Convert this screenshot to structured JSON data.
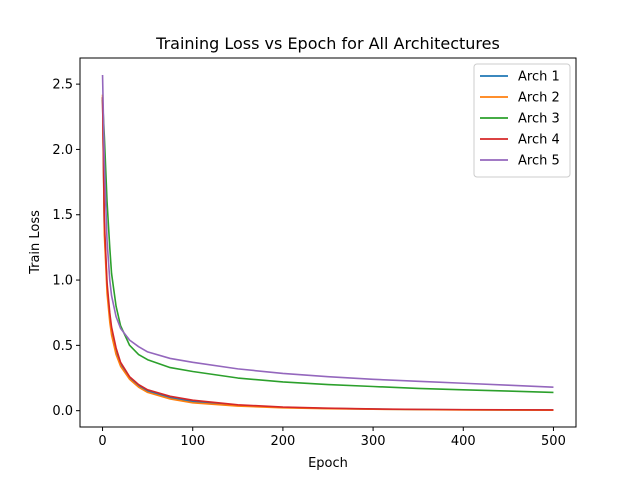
{
  "chart_data": {
    "type": "line",
    "title": "Training Loss vs Epoch for All Architectures",
    "xlabel": "Epoch",
    "ylabel": "Train Loss",
    "xlim": [
      -25,
      525
    ],
    "ylim": [
      -0.125,
      2.7
    ],
    "xticks": [
      0,
      100,
      200,
      300,
      400,
      500
    ],
    "xtick_labels": [
      "0",
      "100",
      "200",
      "300",
      "400",
      "500"
    ],
    "yticks": [
      0.0,
      0.5,
      1.0,
      1.5,
      2.0,
      2.5
    ],
    "ytick_labels": [
      "0.0",
      "0.5",
      "1.0",
      "1.5",
      "2.0",
      "2.5"
    ],
    "grid": false,
    "legend_position": "top-right",
    "x": [
      0,
      2,
      5,
      8,
      10,
      15,
      20,
      30,
      40,
      50,
      75,
      100,
      150,
      200,
      250,
      300,
      350,
      400,
      450,
      500
    ],
    "series": [
      {
        "name": "Arch 1",
        "color": "#1f77b4",
        "values": [
          2.4,
          1.4,
          0.95,
          0.72,
          0.62,
          0.46,
          0.36,
          0.25,
          0.19,
          0.15,
          0.1,
          0.07,
          0.04,
          0.025,
          0.017,
          0.012,
          0.009,
          0.007,
          0.006,
          0.005
        ]
      },
      {
        "name": "Arch 2",
        "color": "#ff7f0e",
        "values": [
          2.42,
          1.35,
          0.9,
          0.68,
          0.58,
          0.43,
          0.34,
          0.24,
          0.18,
          0.14,
          0.09,
          0.06,
          0.035,
          0.022,
          0.015,
          0.011,
          0.008,
          0.006,
          0.005,
          0.004
        ]
      },
      {
        "name": "Arch 3",
        "color": "#2ca02c",
        "values": [
          2.38,
          2.1,
          1.6,
          1.25,
          1.05,
          0.8,
          0.65,
          0.5,
          0.43,
          0.39,
          0.33,
          0.3,
          0.25,
          0.22,
          0.2,
          0.185,
          0.17,
          0.16,
          0.15,
          0.14
        ]
      },
      {
        "name": "Arch 4",
        "color": "#d62728",
        "values": [
          2.4,
          1.45,
          0.98,
          0.75,
          0.64,
          0.48,
          0.37,
          0.26,
          0.2,
          0.16,
          0.11,
          0.08,
          0.045,
          0.028,
          0.019,
          0.013,
          0.01,
          0.008,
          0.007,
          0.006
        ]
      },
      {
        "name": "Arch 5",
        "color": "#9467bd",
        "values": [
          2.57,
          1.9,
          1.3,
          1.0,
          0.88,
          0.72,
          0.63,
          0.54,
          0.49,
          0.45,
          0.4,
          0.37,
          0.32,
          0.285,
          0.26,
          0.24,
          0.225,
          0.21,
          0.195,
          0.18
        ]
      }
    ]
  }
}
